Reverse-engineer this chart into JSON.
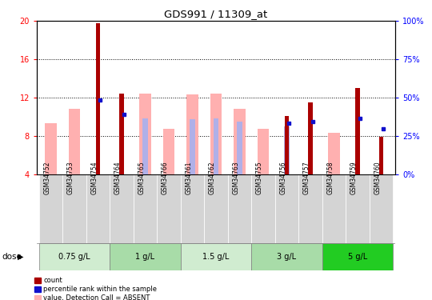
{
  "title": "GDS991 / 11309_at",
  "samples": [
    "GSM34752",
    "GSM34753",
    "GSM34754",
    "GSM34764",
    "GSM34765",
    "GSM34766",
    "GSM34761",
    "GSM34762",
    "GSM34763",
    "GSM34755",
    "GSM34756",
    "GSM34757",
    "GSM34758",
    "GSM34759",
    "GSM34760"
  ],
  "dose_groups": [
    {
      "label": "0.75 g/L",
      "indices": [
        0,
        1,
        2
      ]
    },
    {
      "label": "1 g/L",
      "indices": [
        3,
        4,
        5
      ]
    },
    {
      "label": "1.5 g/L",
      "indices": [
        6,
        7,
        8
      ]
    },
    {
      "label": "3 g/L",
      "indices": [
        9,
        10,
        11
      ]
    },
    {
      "label": "5 g/L",
      "indices": [
        12,
        13,
        14
      ]
    }
  ],
  "red_bar_values": [
    null,
    null,
    19.8,
    12.4,
    null,
    null,
    null,
    null,
    null,
    null,
    10.1,
    11.5,
    null,
    13.0,
    7.9
  ],
  "pink_bar_values": [
    9.3,
    10.8,
    null,
    null,
    12.4,
    8.7,
    12.3,
    12.4,
    10.8,
    8.7,
    null,
    null,
    8.3,
    null,
    null
  ],
  "blue_square_values": [
    null,
    null,
    11.7,
    10.2,
    null,
    null,
    null,
    null,
    null,
    null,
    9.3,
    9.5,
    null,
    9.8,
    8.7
  ],
  "lightblue_bar_values": [
    null,
    null,
    null,
    9.8,
    9.8,
    null,
    9.7,
    9.8,
    9.5,
    null,
    9.0,
    9.5,
    null,
    9.7,
    null
  ],
  "ylim_left": [
    4,
    20
  ],
  "ylim_right": [
    0,
    100
  ],
  "yticks_left": [
    4,
    8,
    12,
    16,
    20
  ],
  "yticks_right": [
    0,
    25,
    50,
    75,
    100
  ],
  "red_color": "#aa0000",
  "pink_color": "#ffb0b0",
  "blue_color": "#1111cc",
  "lightblue_color": "#b0b0e8",
  "dose_colors": [
    "#d0ecd0",
    "#a8dca8",
    "#d0ecd0",
    "#a8dca8",
    "#22cc22"
  ],
  "sample_bg_color": "#d4d4d4"
}
